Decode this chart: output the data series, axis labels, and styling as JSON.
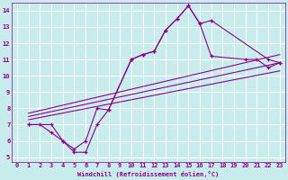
{
  "bg_color": "#c8ecec",
  "line_color": "#8b008b",
  "grid_color": "#ffffff",
  "xlim": [
    -0.5,
    23.5
  ],
  "ylim": [
    4.7,
    14.5
  ],
  "xticks": [
    0,
    1,
    2,
    3,
    4,
    5,
    6,
    7,
    8,
    9,
    10,
    11,
    12,
    13,
    14,
    15,
    16,
    17,
    18,
    19,
    20,
    21,
    22,
    23
  ],
  "yticks": [
    5,
    6,
    7,
    8,
    9,
    10,
    11,
    12,
    13,
    14
  ],
  "xlabel": "Windchill (Refroidissement éolien,°C)",
  "curve1_x": [
    1,
    2,
    3,
    4,
    5,
    6,
    7,
    8,
    10,
    11,
    12,
    13,
    14,
    15,
    16,
    17,
    22,
    23
  ],
  "curve1_y": [
    7.0,
    7.0,
    6.5,
    6.0,
    5.5,
    6.0,
    8.0,
    7.9,
    11.0,
    11.3,
    11.5,
    12.8,
    13.5,
    14.3,
    13.2,
    13.4,
    11.0,
    10.8
  ],
  "curve2_x": [
    1,
    3,
    4,
    5,
    6,
    7,
    8,
    10,
    11,
    12,
    13,
    14,
    15,
    16,
    17,
    20,
    21,
    22,
    23
  ],
  "curve2_y": [
    7.0,
    7.0,
    6.0,
    5.3,
    5.3,
    7.0,
    7.9,
    11.0,
    11.3,
    11.5,
    12.8,
    13.5,
    14.3,
    13.2,
    11.2,
    11.0,
    11.0,
    10.5,
    10.8
  ],
  "line1_x": [
    1,
    23
  ],
  "line1_y": [
    7.3,
    10.3
  ],
  "line2_x": [
    1,
    23
  ],
  "line2_y": [
    7.5,
    10.8
  ],
  "line3_x": [
    1,
    23
  ],
  "line3_y": [
    7.7,
    11.3
  ]
}
